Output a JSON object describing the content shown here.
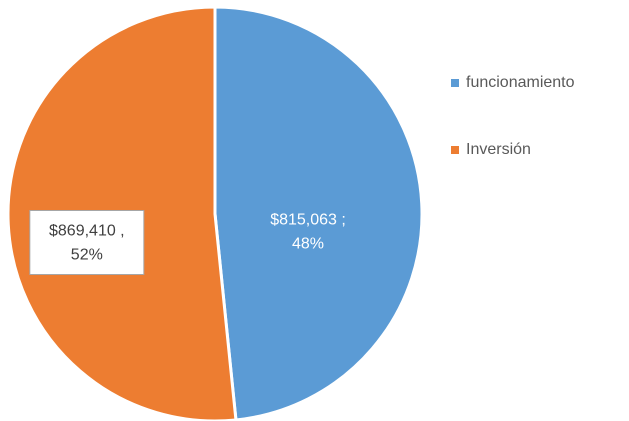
{
  "chart_data": {
    "type": "pie",
    "categories": [
      "funcionamiento",
      "Inversión"
    ],
    "values": [
      815063,
      869410
    ],
    "value_labels": [
      [
        "$815,063 ;",
        "48%"
      ],
      [
        "$869,410 ,",
        "52%"
      ]
    ],
    "colors": [
      "#5b9bd5",
      "#ed7d31"
    ],
    "legend": "right"
  }
}
